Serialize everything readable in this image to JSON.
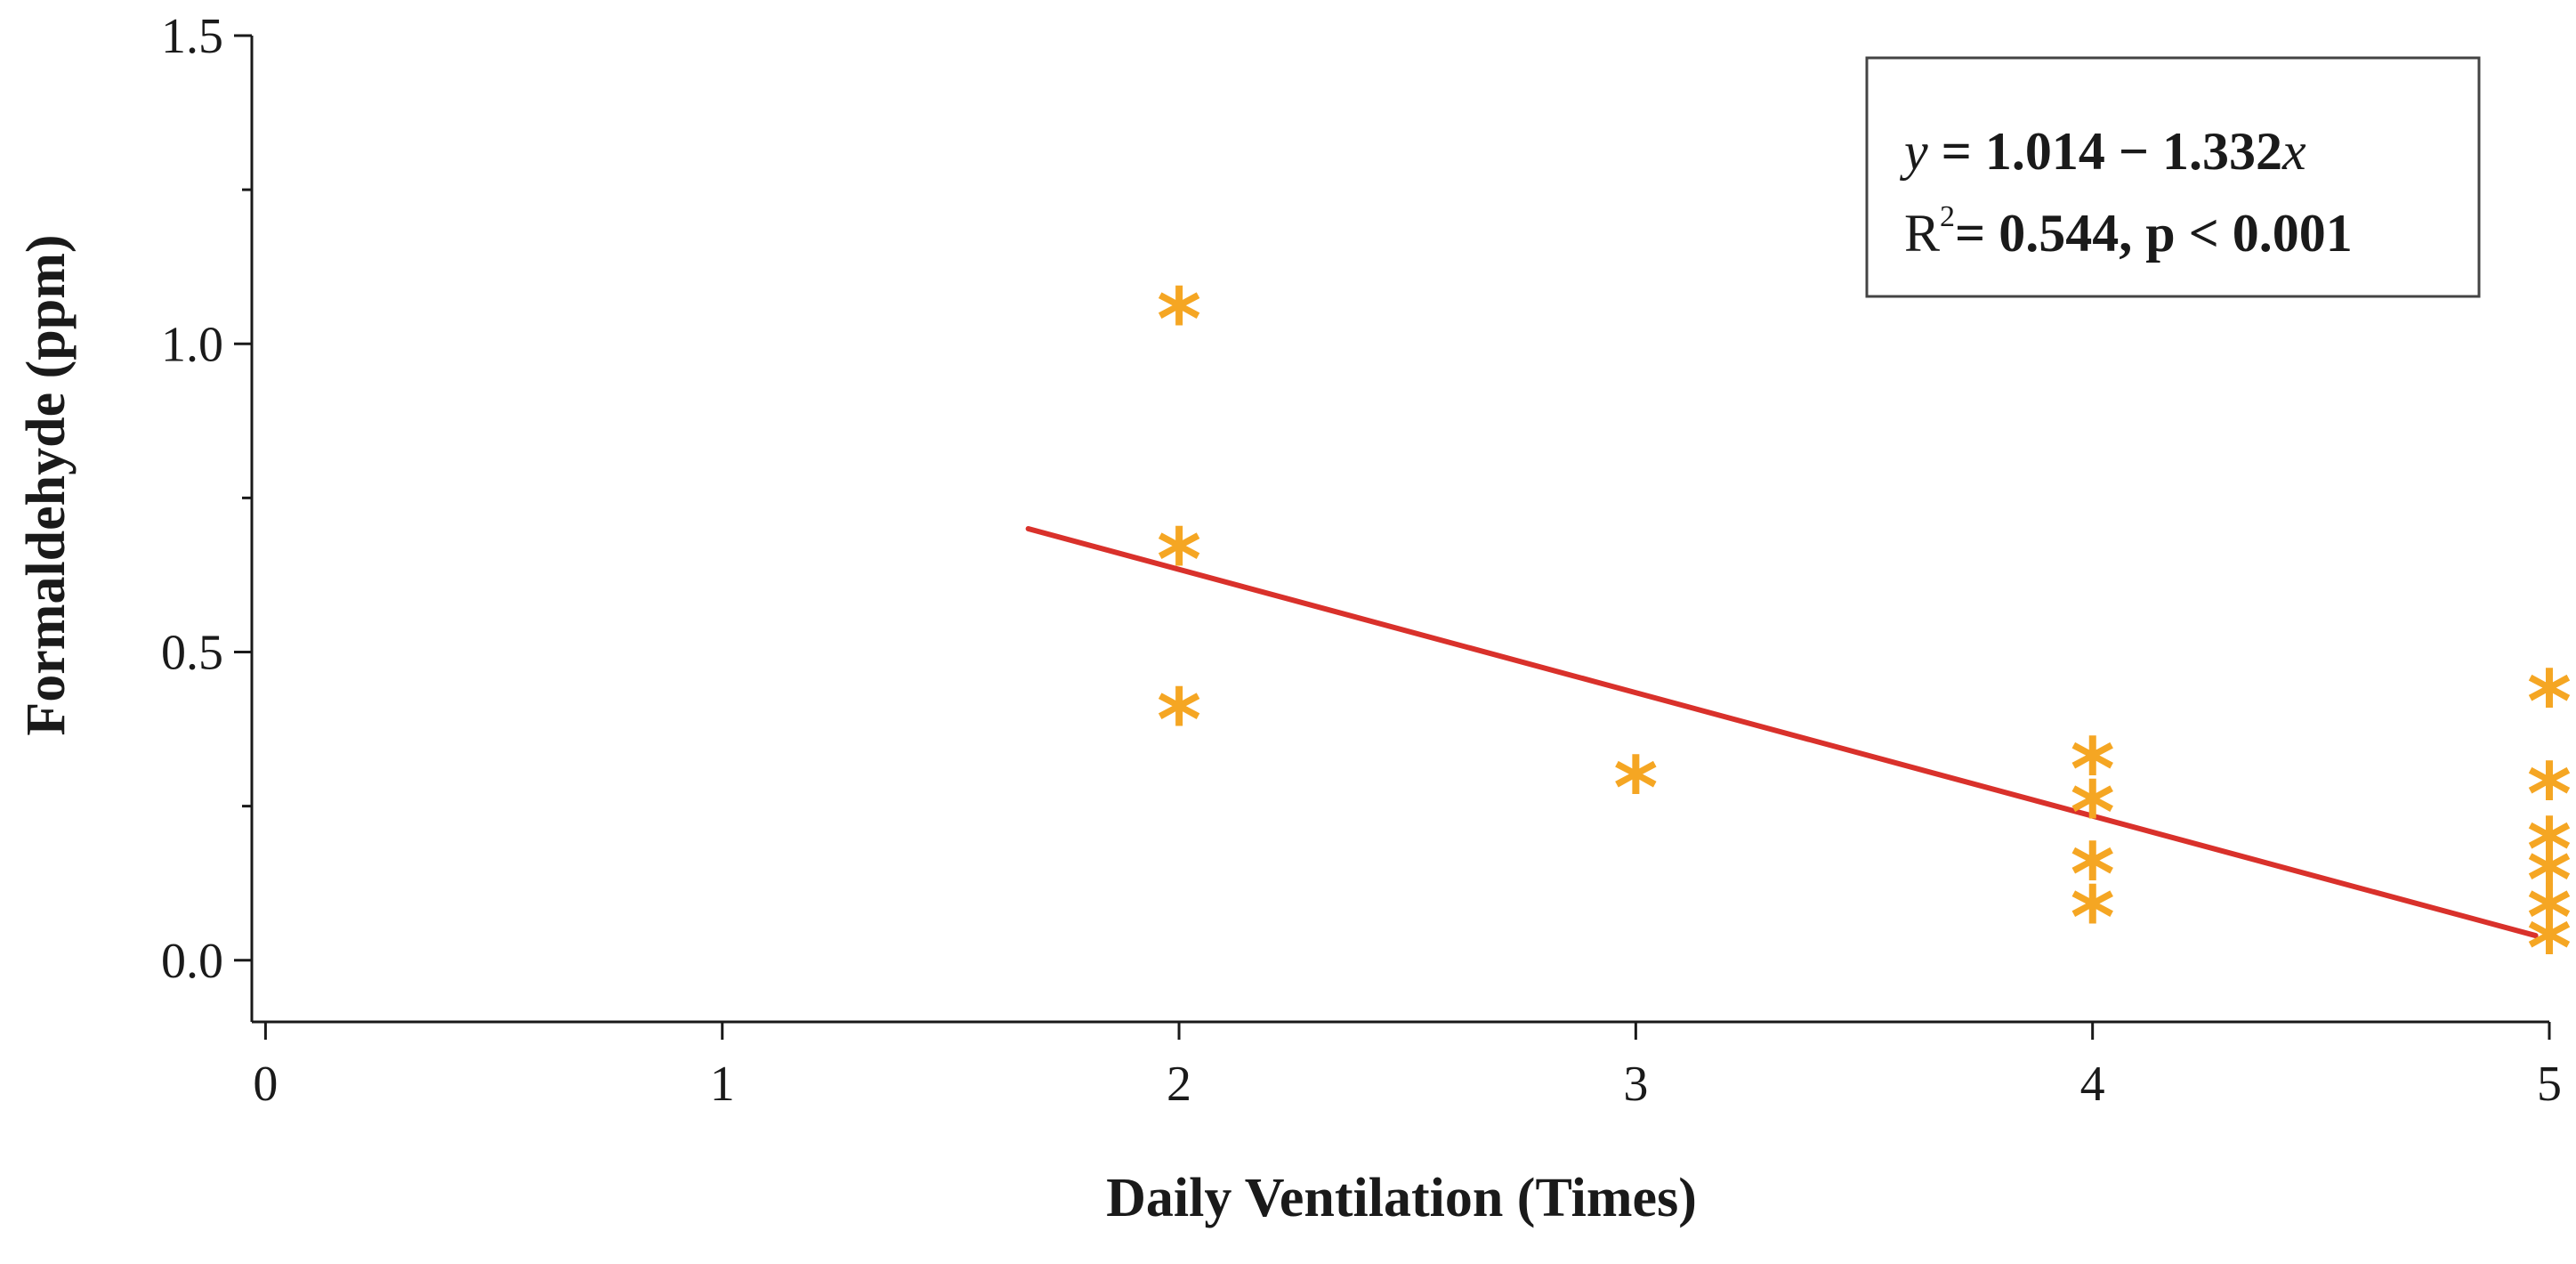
{
  "chart_data": {
    "type": "scatter",
    "xlabel": "Daily Ventilation (Times)",
    "ylabel": "Formaldehyde (ppm)",
    "xlim": [
      -0.03,
      5
    ],
    "ylim": [
      -0.1,
      1.5
    ],
    "xticks": [
      "0",
      "1",
      "2",
      "3",
      "4",
      "5"
    ],
    "xtick_values": [
      0,
      1,
      2,
      3,
      4,
      5
    ],
    "yticks": [
      "0.0",
      "0.5",
      "1.0",
      "1.5"
    ],
    "ytick_values": [
      0.0,
      0.5,
      1.0,
      1.5
    ],
    "y_minor_tick_values": [
      0.25,
      0.75,
      1.25
    ],
    "grid": false,
    "marker_symbol": "*",
    "marker_color": "#F5A623",
    "points": [
      {
        "x": 2,
        "y": 1.04
      },
      {
        "x": 2,
        "y": 0.65
      },
      {
        "x": 2,
        "y": 0.39
      },
      {
        "x": 3,
        "y": 0.28
      },
      {
        "x": 4,
        "y": 0.31
      },
      {
        "x": 4,
        "y": 0.24
      },
      {
        "x": 4,
        "y": 0.14
      },
      {
        "x": 4,
        "y": 0.07
      },
      {
        "x": 5,
        "y": 0.42
      },
      {
        "x": 5,
        "y": 0.27
      },
      {
        "x": 5,
        "y": 0.18
      },
      {
        "x": 5,
        "y": 0.13
      },
      {
        "x": 5,
        "y": 0.07
      },
      {
        "x": 5,
        "y": 0.02
      }
    ],
    "fit_line": {
      "color": "#D9312B",
      "x": [
        1.67,
        4.97
      ],
      "y": [
        0.7,
        0.04
      ]
    },
    "annotation": {
      "equation": {
        "y_var": "y",
        "eq": " = 1.014 − 1.332",
        "x_var": "x"
      },
      "stats": {
        "r": "R",
        "sup": "2",
        "rest": "= 0.544, p < 0.001"
      }
    }
  }
}
